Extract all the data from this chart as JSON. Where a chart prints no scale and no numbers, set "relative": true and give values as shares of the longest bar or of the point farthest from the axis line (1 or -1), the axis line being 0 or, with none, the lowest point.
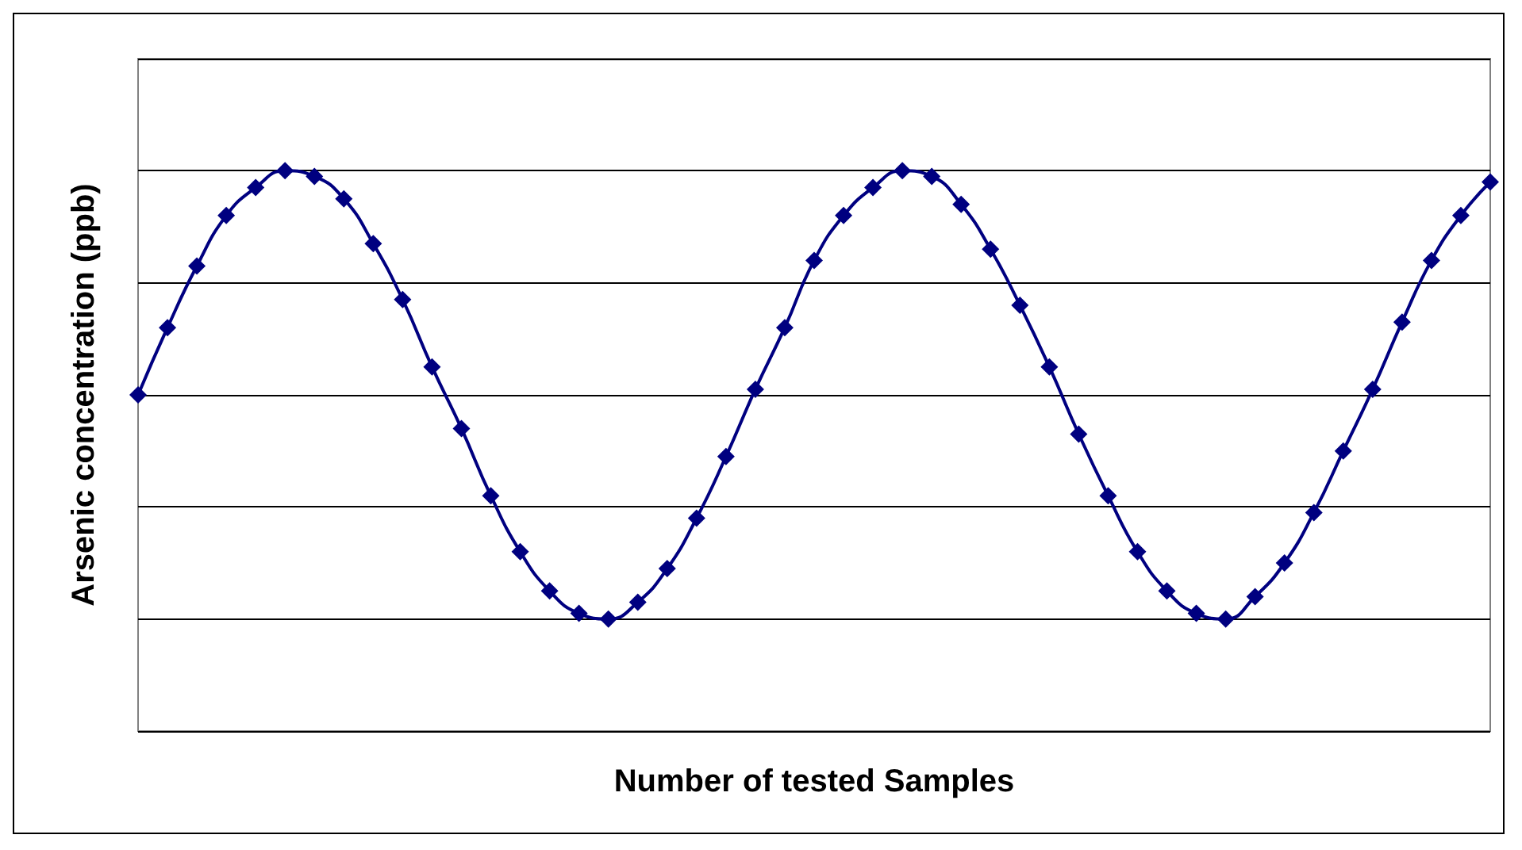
{
  "chart_data": {
    "type": "line",
    "xlabel": "Number of tested Samples",
    "ylabel": "Arsenic concentration (ppb)",
    "relative": true,
    "grid": "y",
    "marker": "diamond",
    "line_style": "solid",
    "categories": [
      null,
      null,
      null,
      null,
      null,
      null,
      null,
      null,
      null,
      null,
      null,
      null,
      null,
      null,
      null,
      null,
      null,
      null,
      null,
      null,
      null,
      null,
      null,
      null,
      null,
      null,
      null,
      null,
      null,
      null,
      null,
      null,
      null,
      null,
      null,
      null,
      null,
      null,
      null,
      null,
      null,
      null,
      null,
      null,
      null,
      null,
      null
    ],
    "series": [
      {
        "color": "#000080",
        "values": [
          0.6,
          0.72,
          0.83,
          0.92,
          0.97,
          1,
          0.99,
          0.95,
          0.87,
          0.77,
          0.65,
          0.54,
          0.42,
          0.32,
          0.25,
          0.21,
          0.2,
          0.23,
          0.29,
          0.38,
          0.49,
          0.61,
          0.72,
          0.84,
          0.92,
          0.97,
          1,
          0.99,
          0.94,
          0.86,
          0.76,
          0.65,
          0.53,
          0.42,
          0.32,
          0.25,
          0.21,
          0.2,
          0.24,
          0.3,
          0.39,
          0.5,
          0.61,
          0.73,
          0.84,
          0.92,
          0.98
        ]
      }
    ]
  }
}
